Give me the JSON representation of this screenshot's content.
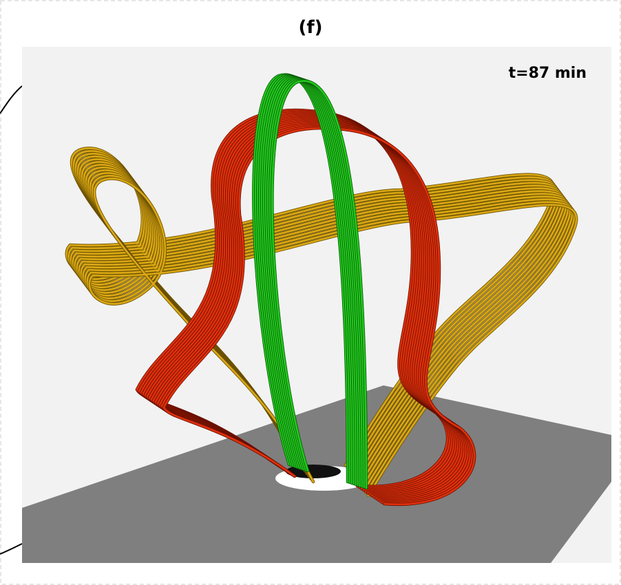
{
  "panel": {
    "label": "(f)",
    "time_label": "t=87 min"
  }
}
